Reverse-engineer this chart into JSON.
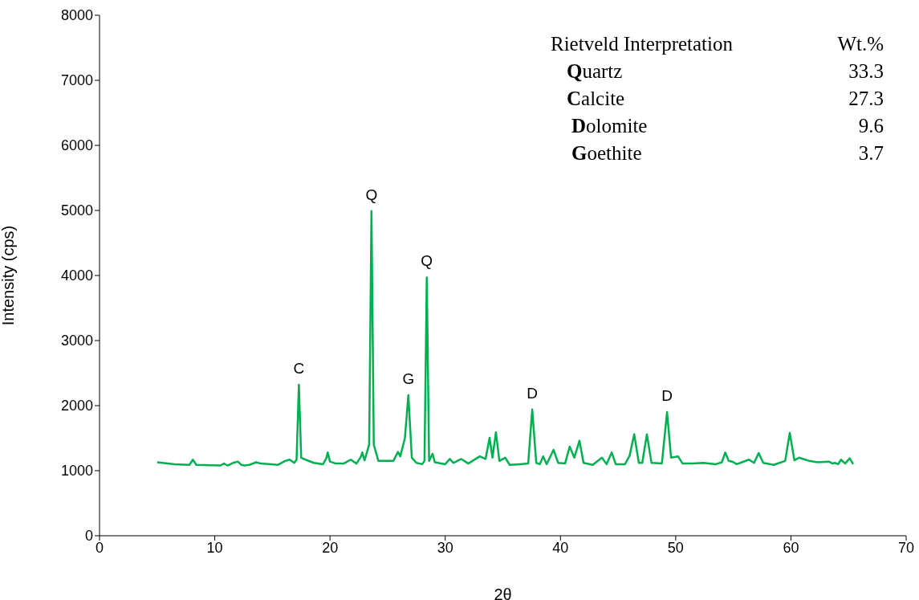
{
  "chart_data": {
    "type": "line",
    "xlabel": "2θ",
    "ylabel": "Intensity (cps)",
    "xlim": [
      0,
      70
    ],
    "xticks": [
      0,
      10,
      20,
      30,
      40,
      50,
      60,
      70
    ],
    "ylim": [
      0,
      8000
    ],
    "yticks": [
      0,
      1000,
      2000,
      3000,
      4000,
      5000,
      6000,
      7000,
      8000
    ],
    "grid": false,
    "legend": false,
    "marker": "none",
    "line_style": "solid",
    "series": [
      {
        "color": "#00b050",
        "x": [
          5.0,
          6.5,
          7.8,
          8.1,
          8.4,
          10.5,
          10.8,
          11.1,
          11.6,
          12.0,
          12.3,
          12.6,
          13.0,
          13.6,
          14.0,
          15.5,
          16.1,
          16.5,
          16.9,
          17.1,
          17.3,
          17.5,
          18.0,
          18.6,
          19.4,
          19.7,
          19.8,
          20.0,
          20.5,
          21.2,
          21.8,
          22.3,
          22.7,
          22.8,
          23.0,
          23.4,
          23.6,
          23.8,
          24.2,
          25.0,
          25.5,
          25.9,
          26.1,
          26.5,
          26.8,
          27.1,
          27.5,
          28.0,
          28.2,
          28.4,
          28.6,
          28.9,
          29.1,
          30.0,
          30.4,
          30.7,
          31.4,
          32.0,
          33.0,
          33.5,
          33.85,
          34.1,
          34.4,
          34.7,
          35.2,
          35.6,
          36.5,
          37.2,
          37.55,
          37.9,
          38.2,
          38.5,
          38.8,
          39.4,
          39.8,
          40.4,
          40.8,
          41.2,
          41.65,
          42.0,
          42.8,
          43.6,
          44.0,
          44.45,
          44.8,
          45.6,
          46.0,
          46.4,
          46.8,
          47.1,
          47.5,
          47.9,
          48.8,
          49.25,
          49.6,
          50.2,
          50.6,
          51.5,
          52.4,
          53.5,
          54.0,
          54.3,
          54.6,
          54.9,
          55.3,
          56.35,
          56.8,
          57.2,
          57.6,
          58.5,
          59.5,
          59.9,
          60.3,
          60.7,
          61.6,
          62.3,
          63.3,
          63.6,
          63.8,
          64.1,
          64.35,
          64.7,
          65.1,
          65.4
        ],
        "values": [
          1130,
          1100,
          1090,
          1170,
          1090,
          1080,
          1110,
          1080,
          1120,
          1140,
          1090,
          1080,
          1090,
          1130,
          1110,
          1090,
          1150,
          1170,
          1120,
          1170,
          2320,
          1200,
          1160,
          1120,
          1100,
          1200,
          1280,
          1140,
          1110,
          1110,
          1170,
          1110,
          1220,
          1280,
          1160,
          1400,
          4990,
          1400,
          1150,
          1150,
          1150,
          1290,
          1220,
          1500,
          2160,
          1200,
          1120,
          1100,
          1150,
          3970,
          1150,
          1260,
          1130,
          1100,
          1180,
          1120,
          1180,
          1110,
          1220,
          1180,
          1506,
          1200,
          1590,
          1150,
          1200,
          1090,
          1100,
          1110,
          1940,
          1120,
          1100,
          1220,
          1100,
          1320,
          1120,
          1110,
          1370,
          1200,
          1460,
          1120,
          1090,
          1200,
          1100,
          1280,
          1100,
          1100,
          1230,
          1560,
          1120,
          1120,
          1560,
          1120,
          1110,
          1900,
          1200,
          1220,
          1110,
          1110,
          1120,
          1100,
          1130,
          1280,
          1150,
          1140,
          1100,
          1170,
          1120,
          1270,
          1120,
          1090,
          1150,
          1580,
          1160,
          1200,
          1150,
          1130,
          1140,
          1110,
          1120,
          1100,
          1170,
          1110,
          1190,
          1100
        ]
      }
    ],
    "annotations": [
      {
        "text": "C",
        "x": 17.3,
        "y": 2320
      },
      {
        "text": "Q",
        "x": 23.6,
        "y": 4990
      },
      {
        "text": "G",
        "x": 26.8,
        "y": 2160
      },
      {
        "text": "Q",
        "x": 28.4,
        "y": 3970
      },
      {
        "text": "D",
        "x": 37.55,
        "y": 1940
      },
      {
        "text": "D",
        "x": 49.25,
        "y": 1900
      },
      "Rietveld Interpretation",
      "Wt.%",
      "Quartz",
      "33.3",
      "Calcite",
      "27.3",
      "Dolomite",
      "9.6",
      "Goethite",
      "3.7"
    ]
  }
}
